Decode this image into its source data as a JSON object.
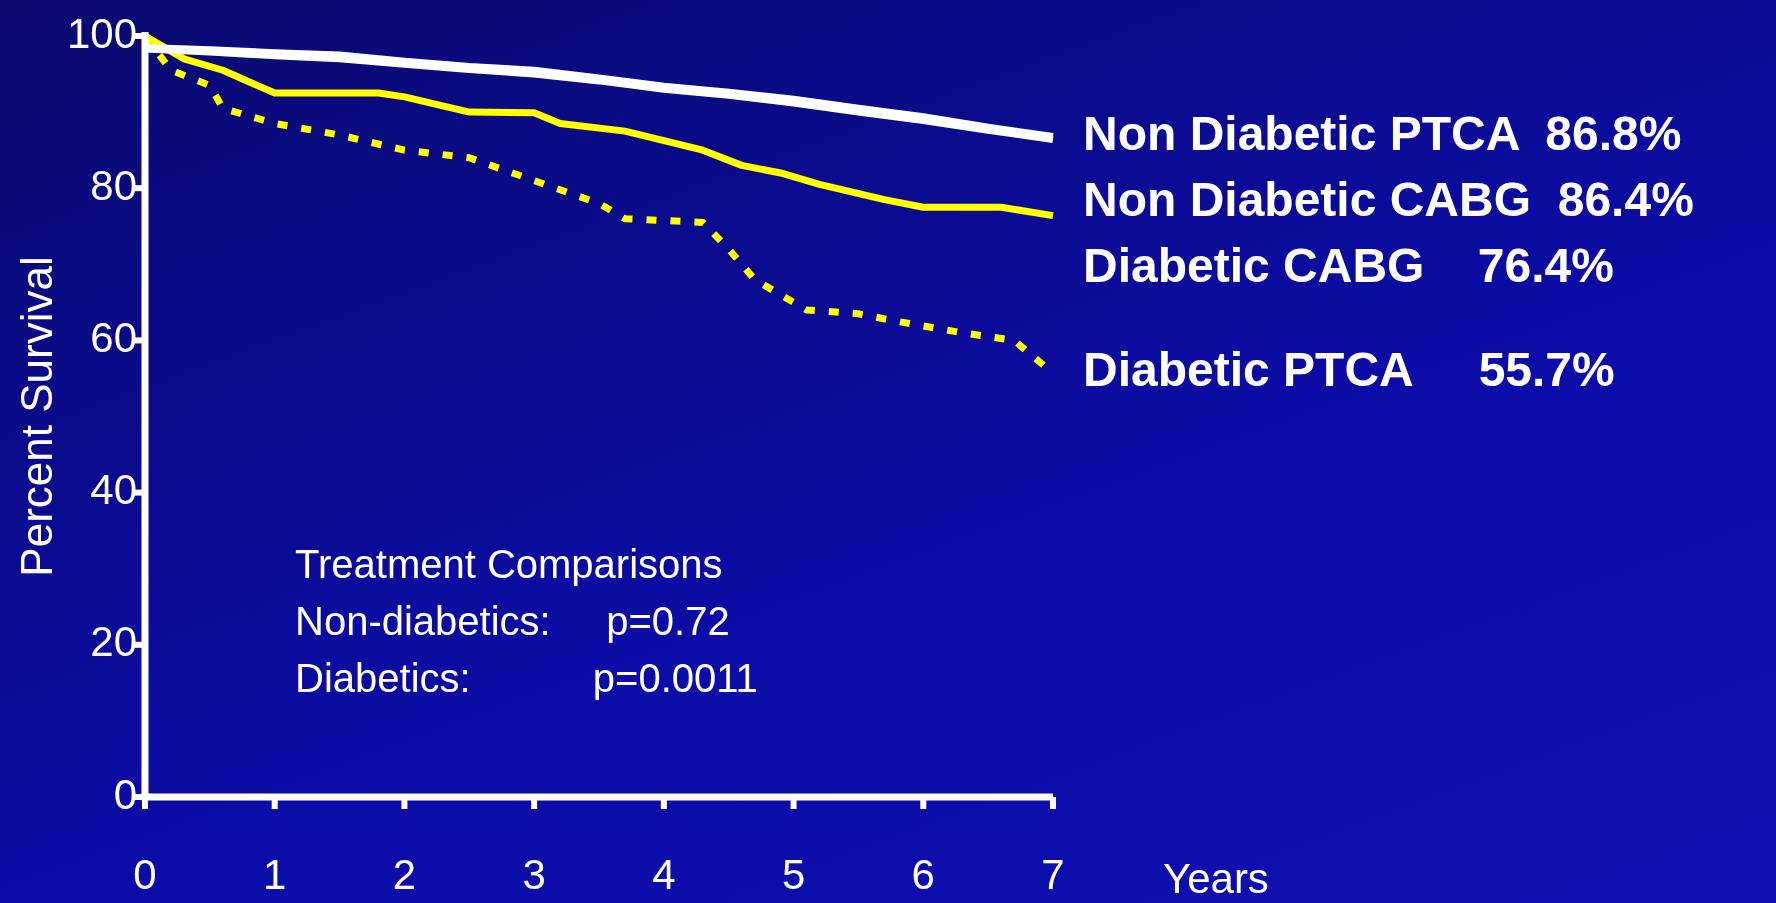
{
  "chart_data": {
    "type": "line",
    "xlabel": "Years",
    "ylabel": "Percent Survival",
    "xlim": [
      0,
      7
    ],
    "xticks": [
      0,
      1,
      2,
      3,
      4,
      5,
      6,
      7
    ],
    "ylim": [
      0,
      100
    ],
    "yticks": [
      0,
      20,
      40,
      60,
      80,
      100
    ],
    "grid": false,
    "legend": false,
    "marker": "none",
    "series": [
      {
        "name": "Non Diabetic PTCA  86.8%",
        "color": "#ffffff",
        "line_style": "solid",
        "x": [
          0,
          0.5,
          1,
          1.5,
          2,
          2.5,
          3,
          3.5,
          4,
          4.5,
          5,
          5.5,
          6,
          6.5,
          7
        ],
        "values": [
          98.5,
          98.2,
          97.8,
          97.5,
          96.7,
          96,
          95.5,
          94.5,
          93.4,
          92.6,
          91.7,
          90.5,
          89.4,
          88,
          86.8
        ]
      },
      {
        "name": "Non Diabetic CABG  86.4%",
        "color": "#ffffff",
        "line_style": "solid",
        "x": [
          0,
          0.5,
          1,
          1.5,
          2,
          2.5,
          3,
          3.5,
          4,
          4.5,
          5,
          5.5,
          6,
          6.5,
          7
        ],
        "values": [
          98.3,
          97.9,
          97.4,
          97,
          96.3,
          95.6,
          95,
          94.1,
          93,
          92.2,
          91.2,
          90,
          88.9,
          87.6,
          86.4
        ]
      },
      {
        "name": "Diabetic CABG    76.4%",
        "color": "#ffff00",
        "line_style": "solid",
        "x": [
          0,
          0.3,
          0.6,
          1,
          1.8,
          2,
          2.5,
          3,
          3.2,
          3.7,
          4.3,
          4.6,
          4.9,
          5.2,
          5.7,
          6,
          6.6,
          7
        ],
        "values": [
          100,
          97,
          95.5,
          92.5,
          92.5,
          92,
          90,
          89.9,
          88.5,
          87.5,
          85,
          83,
          82,
          80.5,
          78.5,
          77.5,
          77.5,
          76.4
        ]
      },
      {
        "name": "Diabetic PTCA     55.7%",
        "color": "#ffff00",
        "line_style": "dotted",
        "x": [
          0,
          0.2,
          0.5,
          0.6,
          1,
          1.5,
          2,
          2.5,
          3,
          3.5,
          3.7,
          4.3,
          4.5,
          4.7,
          5.1,
          5.5,
          5.8,
          6.3,
          6.7,
          7
        ],
        "values": [
          100,
          95.5,
          93.5,
          90.5,
          88.5,
          87,
          85,
          84,
          81,
          78,
          76,
          75.5,
          72,
          68,
          64,
          63.5,
          62.5,
          61,
          60,
          55.7
        ]
      }
    ],
    "annotations": [
      "Treatment Comparisons",
      "Non-diabetics:     p=0.72",
      "Diabetics:           p=0.0011"
    ]
  }
}
